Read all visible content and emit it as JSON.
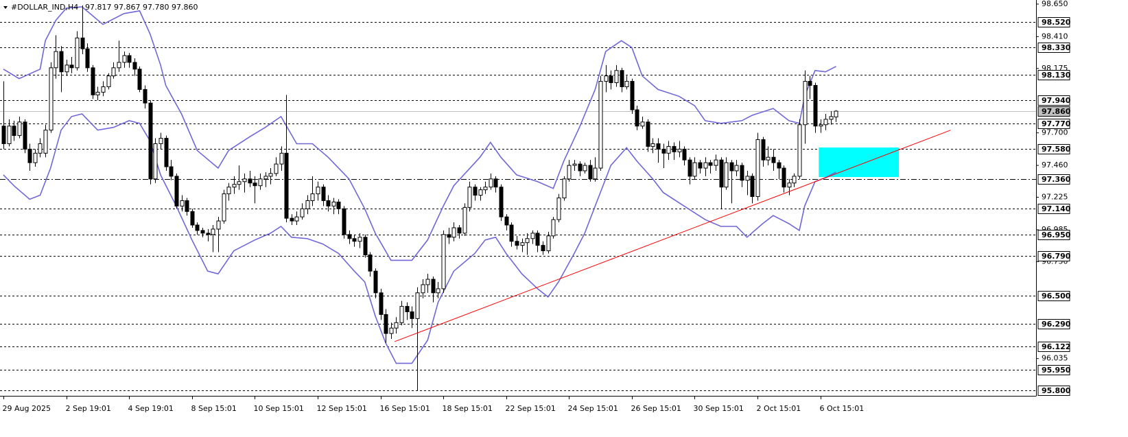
{
  "chart_data": {
    "type": "candlestick",
    "title": "#DOLLAR_IND,H4",
    "subtitle": "97.817 97.867 97.780 97.860",
    "bull_color": "#ffffff",
    "bear_color": "#000000",
    "xlim": [
      -0.66,
      197.2
    ],
    "ylim": [
      95.76,
      98.68
    ],
    "xticks": [
      {
        "value": 0,
        "label": "29 Aug 2025"
      },
      {
        "value": 12,
        "label": "2 Sep 19:01"
      },
      {
        "value": 24,
        "label": "4 Sep 19:01"
      },
      {
        "value": 36,
        "label": "8 Sep 15:01"
      },
      {
        "value": 48,
        "label": "10 Sep 15:01"
      },
      {
        "value": 60,
        "label": "12 Sep 15:01"
      },
      {
        "value": 72,
        "label": "16 Sep 15:01"
      },
      {
        "value": 84,
        "label": "18 Sep 15:01"
      },
      {
        "value": 96,
        "label": "22 Sep 15:01"
      },
      {
        "value": 108,
        "label": "24 Sep 15:01"
      },
      {
        "value": 120,
        "label": "26 Sep 15:01"
      },
      {
        "value": 132,
        "label": "30 Sep 15:01"
      },
      {
        "value": 144,
        "label": "2 Oct 15:01"
      },
      {
        "value": 156,
        "label": "6 Oct 15:01"
      }
    ],
    "yticks": [
      {
        "value": 98.65,
        "label": "98.650"
      },
      {
        "value": 98.41,
        "label": "98.410"
      },
      98.175,
      {
        "value": 97.7,
        "label": "97.700"
      },
      {
        "value": 97.46,
        "label": "97.460"
      },
      97.225,
      96.985,
      {
        "value": 96.75,
        "label": "96.750"
      },
      96.035
    ],
    "levels": [
      {
        "value": 98.52,
        "label": "98.520",
        "style": "dotted"
      },
      {
        "value": 98.33,
        "label": "98.330",
        "style": "dotted"
      },
      {
        "value": 98.13,
        "label": "98.130",
        "style": "dotted"
      },
      {
        "value": 97.94,
        "label": "97.940",
        "style": "dotted"
      },
      {
        "value": 97.77,
        "label": "97.770",
        "style": "dotted"
      },
      {
        "value": 97.58,
        "label": "97.580",
        "style": "dotted"
      },
      {
        "value": 97.36,
        "label": "97.360",
        "style": "dashdot"
      },
      {
        "value": 97.14,
        "label": "97.140",
        "style": "dotted"
      },
      {
        "value": 96.95,
        "label": "96.950",
        "style": "dotted"
      },
      {
        "value": 96.79,
        "label": "96.790",
        "style": "dotted"
      },
      {
        "value": 96.5,
        "label": "96.500",
        "style": "dotted"
      },
      {
        "value": 96.29,
        "label": "96.290",
        "style": "dotted"
      },
      {
        "value": 96.122,
        "label": "96.122",
        "style": "dotted"
      },
      {
        "value": 95.95,
        "label": "95.950",
        "style": "dotted"
      },
      {
        "value": 95.8,
        "label": "95.800",
        "style": "dotted"
      }
    ],
    "current_price": {
      "value": 97.86,
      "label": "97.860",
      "color": "#c0c0c0"
    },
    "ohlc": [
      [
        97.75,
        98.08,
        97.58,
        97.62
      ],
      [
        97.62,
        97.8,
        97.6,
        97.75
      ],
      [
        97.75,
        97.79,
        97.64,
        97.68
      ],
      [
        97.68,
        97.82,
        97.66,
        97.78
      ],
      [
        97.78,
        97.8,
        97.55,
        97.58
      ],
      [
        97.58,
        97.62,
        97.42,
        97.48
      ],
      [
        97.48,
        97.58,
        97.45,
        97.55
      ],
      [
        97.55,
        97.66,
        97.52,
        97.62
      ],
      [
        97.55,
        97.76,
        97.52,
        97.72
      ],
      [
        97.72,
        98.22,
        97.7,
        98.18
      ],
      [
        98.18,
        98.42,
        98.1,
        98.3
      ],
      [
        98.3,
        98.34,
        98.0,
        98.15
      ],
      [
        98.15,
        98.24,
        98.12,
        98.2
      ],
      [
        98.2,
        98.26,
        98.14,
        98.18
      ],
      [
        98.18,
        98.45,
        98.16,
        98.4
      ],
      [
        98.4,
        98.64,
        98.28,
        98.32
      ],
      [
        98.32,
        98.36,
        98.15,
        98.18
      ],
      [
        98.18,
        98.2,
        97.95,
        97.98
      ],
      [
        97.98,
        98.04,
        97.94,
        98.0
      ],
      [
        98.0,
        98.08,
        97.97,
        98.04
      ],
      [
        98.04,
        98.14,
        98.02,
        98.12
      ],
      [
        98.12,
        98.22,
        98.1,
        98.18
      ],
      [
        98.18,
        98.38,
        98.15,
        98.22
      ],
      [
        98.22,
        98.3,
        98.18,
        98.27
      ],
      [
        98.27,
        98.29,
        98.18,
        98.22
      ],
      [
        98.22,
        98.25,
        98.12,
        98.17
      ],
      [
        98.17,
        98.19,
        98.0,
        98.02
      ],
      [
        98.02,
        98.05,
        97.88,
        97.92
      ],
      [
        97.92,
        97.94,
        97.32,
        97.36
      ],
      [
        97.36,
        97.66,
        97.33,
        97.62
      ],
      [
        97.62,
        97.7,
        97.58,
        97.66
      ],
      [
        97.66,
        97.68,
        97.42,
        97.45
      ],
      [
        97.45,
        97.5,
        97.35,
        97.38
      ],
      [
        97.38,
        97.4,
        97.14,
        97.16
      ],
      [
        97.16,
        97.24,
        97.12,
        97.2
      ],
      [
        97.2,
        97.22,
        97.09,
        97.12
      ],
      [
        97.12,
        97.14,
        97.0,
        97.02
      ],
      [
        97.02,
        97.04,
        96.95,
        96.98
      ],
      [
        96.98,
        97.0,
        96.93,
        96.96
      ],
      [
        96.96,
        96.99,
        96.9,
        96.95
      ],
      [
        96.95,
        97.02,
        96.82,
        96.99
      ],
      [
        96.99,
        97.08,
        96.82,
        97.05
      ],
      [
        97.05,
        97.28,
        97.03,
        97.25
      ],
      [
        97.25,
        97.33,
        97.2,
        97.3
      ],
      [
        97.3,
        97.38,
        97.25,
        97.32
      ],
      [
        97.32,
        97.46,
        97.28,
        97.34
      ],
      [
        97.34,
        97.4,
        97.26,
        97.36
      ],
      [
        97.36,
        97.42,
        97.3,
        97.33
      ],
      [
        97.33,
        97.38,
        97.18,
        97.31
      ],
      [
        97.31,
        97.4,
        97.28,
        97.36
      ],
      [
        97.36,
        97.41,
        97.3,
        97.38
      ],
      [
        97.38,
        97.44,
        97.32,
        97.4
      ],
      [
        97.4,
        97.52,
        97.38,
        97.47
      ],
      [
        97.47,
        97.6,
        97.42,
        97.55
      ],
      [
        97.55,
        97.98,
        97.04,
        97.07
      ],
      [
        97.07,
        97.1,
        97.02,
        97.05
      ],
      [
        97.05,
        97.12,
        97.02,
        97.08
      ],
      [
        97.08,
        97.18,
        97.06,
        97.14
      ],
      [
        97.14,
        97.24,
        97.1,
        97.2
      ],
      [
        97.2,
        97.38,
        97.16,
        97.25
      ],
      [
        97.25,
        97.34,
        97.2,
        97.3
      ],
      [
        97.3,
        97.32,
        97.16,
        97.2
      ],
      [
        97.2,
        97.24,
        97.12,
        97.16
      ],
      [
        97.16,
        97.22,
        97.1,
        97.19
      ],
      [
        97.19,
        97.21,
        97.1,
        97.14
      ],
      [
        97.14,
        97.16,
        96.92,
        96.95
      ],
      [
        96.95,
        96.98,
        96.88,
        96.92
      ],
      [
        96.92,
        96.95,
        96.86,
        96.9
      ],
      [
        96.9,
        96.96,
        96.85,
        96.93
      ],
      [
        96.93,
        96.95,
        96.78,
        96.8
      ],
      [
        96.8,
        96.82,
        96.64,
        96.68
      ],
      [
        96.68,
        96.7,
        96.48,
        96.52
      ],
      [
        96.52,
        96.55,
        96.32,
        96.36
      ],
      [
        96.36,
        96.4,
        96.15,
        96.22
      ],
      [
        96.22,
        96.3,
        96.18,
        96.26
      ],
      [
        96.26,
        96.34,
        96.22,
        96.3
      ],
      [
        96.3,
        96.46,
        96.28,
        96.42
      ],
      [
        96.42,
        96.45,
        96.32,
        96.38
      ],
      [
        96.38,
        96.42,
        96.26,
        96.33
      ],
      [
        96.33,
        96.56,
        95.8,
        96.52
      ],
      [
        96.52,
        96.62,
        96.48,
        96.58
      ],
      [
        96.58,
        96.66,
        96.52,
        96.62
      ],
      [
        96.62,
        96.64,
        96.45,
        96.52
      ],
      [
        96.52,
        96.6,
        96.48,
        96.55
      ],
      [
        96.55,
        96.98,
        96.52,
        96.95
      ],
      [
        96.95,
        97.0,
        96.88,
        96.93
      ],
      [
        96.93,
        97.04,
        96.9,
        97.0
      ],
      [
        97.0,
        97.02,
        96.92,
        96.96
      ],
      [
        96.96,
        97.18,
        96.94,
        97.15
      ],
      [
        97.15,
        97.34,
        97.12,
        97.3
      ],
      [
        97.3,
        97.32,
        97.2,
        97.24
      ],
      [
        97.24,
        97.3,
        97.2,
        97.28
      ],
      [
        97.28,
        97.34,
        97.25,
        97.3
      ],
      [
        97.3,
        97.4,
        97.28,
        97.36
      ],
      [
        97.36,
        97.38,
        97.26,
        97.3
      ],
      [
        97.3,
        97.32,
        97.05,
        97.08
      ],
      [
        97.08,
        97.1,
        96.98,
        97.02
      ],
      [
        97.02,
        97.04,
        96.86,
        96.9
      ],
      [
        96.9,
        96.94,
        96.84,
        96.87
      ],
      [
        96.87,
        96.92,
        96.82,
        96.89
      ],
      [
        96.89,
        96.96,
        96.8,
        96.92
      ],
      [
        96.92,
        96.98,
        96.88,
        96.96
      ],
      [
        96.96,
        96.98,
        96.82,
        96.87
      ],
      [
        96.87,
        96.9,
        96.8,
        96.83
      ],
      [
        96.83,
        96.97,
        96.81,
        96.94
      ],
      [
        96.94,
        97.08,
        96.92,
        97.06
      ],
      [
        97.06,
        97.25,
        97.04,
        97.22
      ],
      [
        97.22,
        97.38,
        97.2,
        97.36
      ],
      [
        97.36,
        97.5,
        97.34,
        97.46
      ],
      [
        97.46,
        97.5,
        97.42,
        97.47
      ],
      [
        97.47,
        97.49,
        97.38,
        97.42
      ],
      [
        97.42,
        97.48,
        97.4,
        97.46
      ],
      [
        97.46,
        97.5,
        97.34,
        97.36
      ],
      [
        97.36,
        97.52,
        97.34,
        97.44
      ],
      [
        97.44,
        98.12,
        97.42,
        98.08
      ],
      [
        98.08,
        98.2,
        98.0,
        98.12
      ],
      [
        98.12,
        98.16,
        98.02,
        98.07
      ],
      [
        98.07,
        98.2,
        98.04,
        98.16
      ],
      [
        98.16,
        98.18,
        98.0,
        98.04
      ],
      [
        98.04,
        98.12,
        98.02,
        98.08
      ],
      [
        98.08,
        98.1,
        97.84,
        97.87
      ],
      [
        97.87,
        97.9,
        97.72,
        97.75
      ],
      [
        97.75,
        97.82,
        97.73,
        97.78
      ],
      [
        97.78,
        97.8,
        97.56,
        97.6
      ],
      [
        97.6,
        97.66,
        97.55,
        97.62
      ],
      [
        97.62,
        97.66,
        97.48,
        97.58
      ],
      [
        97.58,
        97.62,
        97.44,
        97.55
      ],
      [
        97.55,
        97.64,
        97.5,
        97.6
      ],
      [
        97.6,
        97.63,
        97.5,
        97.56
      ],
      [
        97.56,
        97.64,
        97.52,
        97.58
      ],
      [
        97.58,
        97.6,
        97.46,
        97.5
      ],
      [
        97.5,
        97.52,
        97.32,
        97.38
      ],
      [
        97.38,
        97.52,
        97.36,
        97.48
      ],
      [
        97.48,
        97.5,
        97.4,
        97.44
      ],
      [
        97.44,
        97.52,
        97.38,
        97.48
      ],
      [
        97.48,
        97.5,
        97.4,
        97.46
      ],
      [
        97.46,
        97.54,
        97.42,
        97.5
      ],
      [
        97.5,
        97.52,
        97.14,
        97.3
      ],
      [
        97.3,
        97.52,
        97.28,
        97.48
      ],
      [
        97.48,
        97.5,
        97.18,
        97.42
      ],
      [
        97.42,
        97.5,
        97.38,
        97.46
      ],
      [
        97.46,
        97.48,
        97.3,
        97.35
      ],
      [
        97.35,
        97.42,
        97.24,
        97.38
      ],
      [
        97.38,
        97.4,
        97.18,
        97.23
      ],
      [
        97.23,
        97.7,
        97.2,
        97.65
      ],
      [
        97.65,
        97.67,
        97.45,
        97.5
      ],
      [
        97.5,
        97.6,
        97.46,
        97.52
      ],
      [
        97.52,
        97.58,
        97.42,
        97.48
      ],
      [
        97.48,
        97.5,
        97.36,
        97.44
      ],
      [
        97.44,
        97.46,
        97.26,
        97.3
      ],
      [
        97.3,
        97.36,
        97.24,
        97.33
      ],
      [
        97.33,
        97.4,
        97.3,
        97.38
      ],
      [
        97.38,
        97.8,
        97.36,
        97.76
      ],
      [
        97.76,
        98.16,
        97.62,
        98.08
      ],
      [
        98.08,
        98.12,
        97.95,
        98.05
      ],
      [
        98.05,
        98.07,
        97.7,
        97.75
      ],
      [
        97.75,
        97.8,
        97.7,
        97.76
      ],
      [
        97.76,
        97.84,
        97.72,
        97.8
      ],
      [
        97.8,
        97.86,
        97.76,
        97.82
      ],
      [
        97.817,
        97.867,
        97.78,
        97.86
      ]
    ],
    "bands": [
      {
        "color": "#6f66d8",
        "x": [
          0,
          3,
          7,
          8,
          10,
          12,
          15,
          19,
          23,
          26,
          28,
          30,
          31,
          34,
          37,
          41,
          43,
          47,
          50,
          53,
          56,
          59,
          62,
          66,
          69,
          71,
          74,
          78,
          81,
          84,
          86,
          91,
          93,
          95,
          98,
          102,
          105,
          107,
          110,
          113,
          115,
          118,
          120,
          122,
          125,
          129,
          132,
          134,
          137,
          141,
          143,
          147,
          150,
          152,
          153,
          155,
          157,
          159
        ],
        "values": [
          98.17,
          98.1,
          98.17,
          98.38,
          98.53,
          98.62,
          98.63,
          98.5,
          98.58,
          98.6,
          98.43,
          98.2,
          98.05,
          97.84,
          97.57,
          97.44,
          97.57,
          97.67,
          97.74,
          97.82,
          97.62,
          97.62,
          97.52,
          97.36,
          97.14,
          96.96,
          96.76,
          96.76,
          96.91,
          97.16,
          97.31,
          97.52,
          97.63,
          97.52,
          97.39,
          97.34,
          97.29,
          97.49,
          97.74,
          98.02,
          98.3,
          98.38,
          98.33,
          98.12,
          98.02,
          97.97,
          97.9,
          97.79,
          97.77,
          97.79,
          97.83,
          97.88,
          97.79,
          97.77,
          97.97,
          98.16,
          98.15,
          98.19
        ]
      },
      {
        "color": "#6f66d8",
        "x": [
          0,
          2,
          5,
          7,
          9,
          11,
          13,
          15,
          18,
          21,
          24,
          26,
          28,
          30,
          33,
          36,
          39,
          41,
          44,
          48,
          51,
          53,
          55,
          58,
          61,
          64,
          67,
          69,
          71,
          73,
          75,
          78,
          81,
          83,
          86,
          90,
          92,
          94,
          96,
          99,
          102,
          104,
          106,
          109,
          111,
          113,
          116,
          119,
          121,
          124,
          126,
          130,
          134,
          137,
          140,
          142,
          145,
          147,
          150,
          152,
          153,
          155,
          157,
          159
        ],
        "values": [
          97.39,
          97.31,
          97.21,
          97.24,
          97.44,
          97.72,
          97.82,
          97.84,
          97.72,
          97.74,
          97.79,
          97.77,
          97.64,
          97.39,
          97.16,
          96.91,
          96.68,
          96.66,
          96.83,
          96.91,
          96.96,
          97.01,
          96.93,
          96.92,
          96.88,
          96.81,
          96.68,
          96.6,
          96.35,
          96.15,
          96.0,
          96.0,
          96.17,
          96.45,
          96.68,
          96.81,
          96.91,
          96.93,
          96.81,
          96.66,
          96.55,
          96.49,
          96.6,
          96.81,
          96.96,
          97.16,
          97.46,
          97.59,
          97.49,
          97.36,
          97.26,
          97.16,
          97.06,
          97.01,
          97.01,
          96.93,
          97.03,
          97.09,
          97.03,
          96.98,
          97.16,
          97.34,
          97.37,
          97.41
        ]
      }
    ],
    "trendline": {
      "color": "#ff0000",
      "x": [
        74.7,
        180.9
      ],
      "y": [
        96.16,
        97.72
      ]
    },
    "zone": {
      "color": "#00ffff",
      "x": [
        155.7,
        171
      ],
      "y": [
        97.374,
        97.592
      ]
    }
  }
}
